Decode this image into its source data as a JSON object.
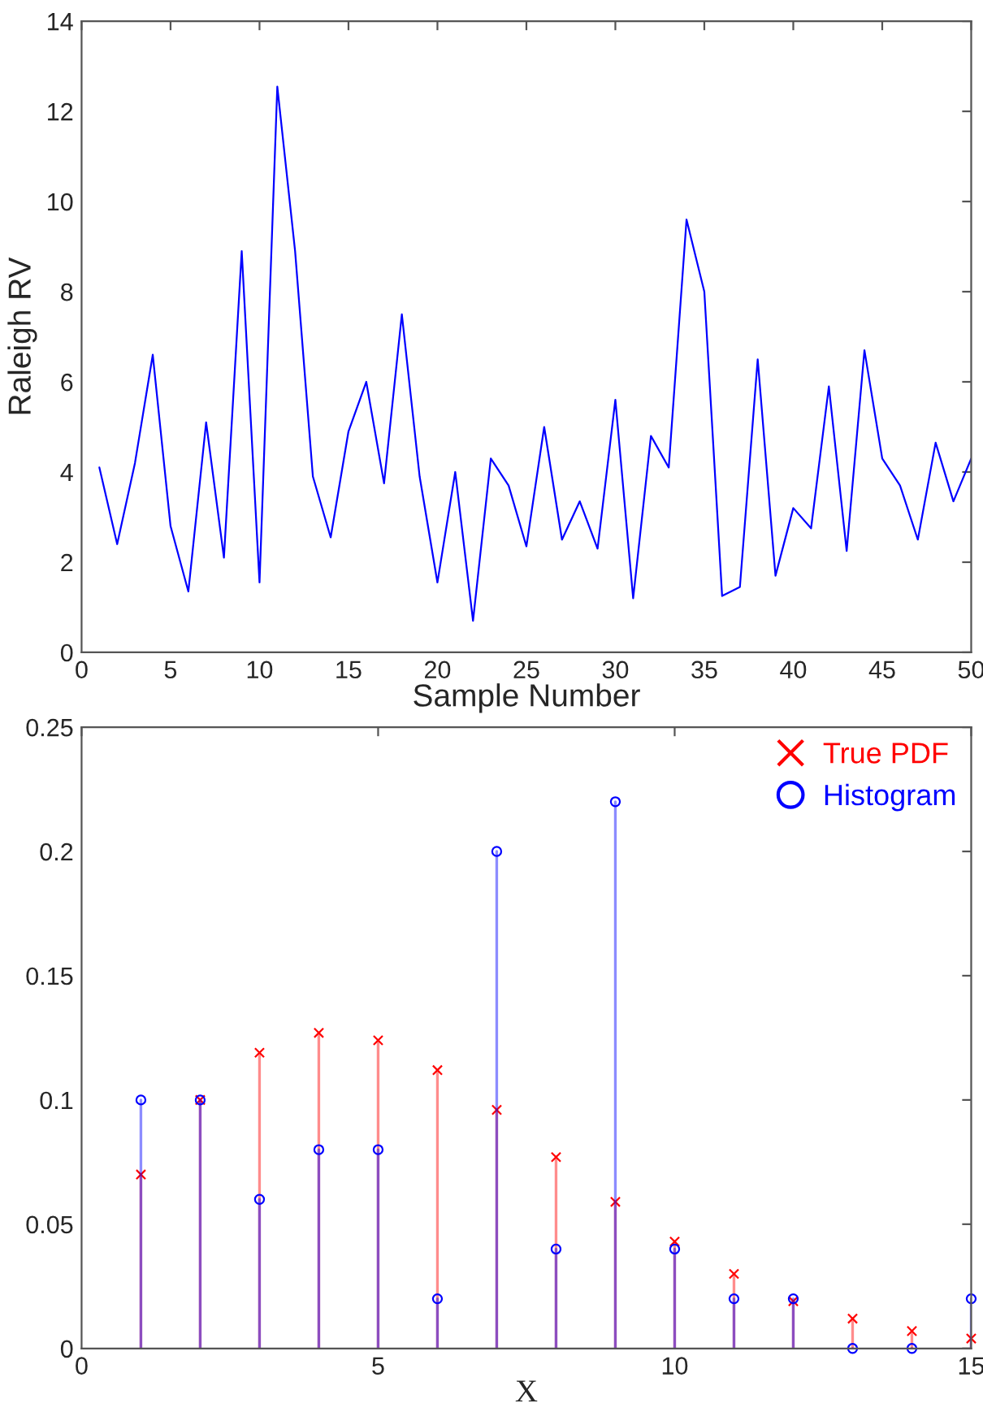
{
  "chart_data": [
    {
      "type": "line",
      "xlabel": "Sample Number",
      "ylabel": "Raleigh RV",
      "x": [
        1,
        2,
        3,
        4,
        5,
        6,
        7,
        8,
        9,
        10,
        11,
        12,
        13,
        14,
        15,
        16,
        17,
        18,
        19,
        20,
        21,
        22,
        23,
        24,
        25,
        26,
        27,
        28,
        29,
        30,
        31,
        32,
        33,
        34,
        35,
        36,
        37,
        38,
        39,
        40,
        41,
        42,
        43,
        44,
        45,
        46,
        47,
        48,
        49,
        50
      ],
      "series": [
        {
          "color": "#0000ff",
          "values": [
            4.1,
            2.4,
            4.2,
            6.6,
            2.8,
            1.35,
            5.1,
            2.1,
            8.9,
            1.55,
            12.55,
            8.9,
            3.9,
            2.55,
            4.9,
            6.0,
            3.75,
            7.5,
            3.9,
            1.55,
            4.0,
            0.7,
            4.3,
            3.7,
            2.35,
            5.0,
            2.5,
            3.35,
            2.3,
            5.6,
            1.2,
            4.8,
            4.1,
            9.6,
            8.0,
            1.25,
            1.45,
            6.5,
            1.7,
            3.2,
            2.75,
            5.9,
            2.25,
            6.7,
            4.3,
            3.7,
            2.5,
            4.65,
            3.35,
            4.3
          ]
        }
      ],
      "xlim": [
        0,
        50
      ],
      "xticks": [
        0,
        5,
        10,
        15,
        20,
        25,
        30,
        35,
        40,
        45,
        50
      ],
      "ylim": [
        0,
        14
      ],
      "yticks": [
        0,
        2,
        4,
        6,
        8,
        10,
        12,
        14
      ],
      "grid": false,
      "legend": false,
      "marker": "none",
      "line_style": "solid"
    },
    {
      "type": "lollipop",
      "xlabel": "X",
      "x": [
        1,
        2,
        3,
        4,
        5,
        6,
        7,
        8,
        9,
        10,
        11,
        12,
        13,
        14,
        15
      ],
      "series": [
        {
          "name": "True PDF",
          "color": "#ff0000",
          "marker": "cross",
          "values": [
            0.07,
            0.1,
            0.119,
            0.127,
            0.124,
            0.112,
            0.096,
            0.077,
            0.059,
            0.043,
            0.03,
            0.019,
            0.012,
            0.007,
            0.004
          ]
        },
        {
          "name": "Histogram",
          "color": "#0000ff",
          "marker": "circle",
          "values": [
            0.1,
            0.1,
            0.06,
            0.08,
            0.08,
            0.02,
            0.2,
            0.04,
            0.22,
            0.04,
            0.02,
            0.02,
            0,
            0,
            0.02
          ]
        }
      ],
      "xlim": [
        0,
        15
      ],
      "xticks": [
        0,
        5,
        10,
        15
      ],
      "ylim": [
        0,
        0.25
      ],
      "yticks": [
        0,
        0.05,
        0.1,
        0.15,
        0.2,
        0.25
      ],
      "grid": false,
      "legend": "top right"
    }
  ]
}
